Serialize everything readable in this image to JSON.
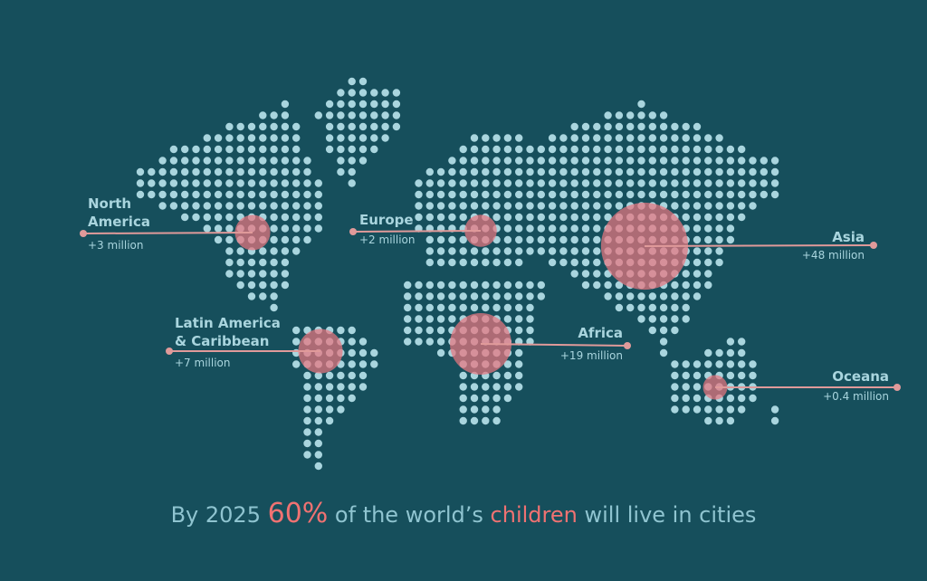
{
  "regions": [
    {
      "name": "North America",
      "value": 3,
      "value_label": "+3 million"
    },
    {
      "name": "Europe",
      "value": 2,
      "value_label": "+2 million"
    },
    {
      "name": "Latin America & Caribbean",
      "value": 7,
      "value_label": "+7 million"
    },
    {
      "name": "Africa",
      "value": 19,
      "value_label": "+19 million"
    },
    {
      "name": "Asia",
      "value": 48,
      "value_label": "+48 million"
    },
    {
      "name": "Oceana",
      "value": 0.4,
      "value_label": "+0.4 million"
    }
  ],
  "caption": [
    "By 2025 ",
    "60%",
    " of the world’s ",
    "children",
    " will live in cities"
  ]
}
